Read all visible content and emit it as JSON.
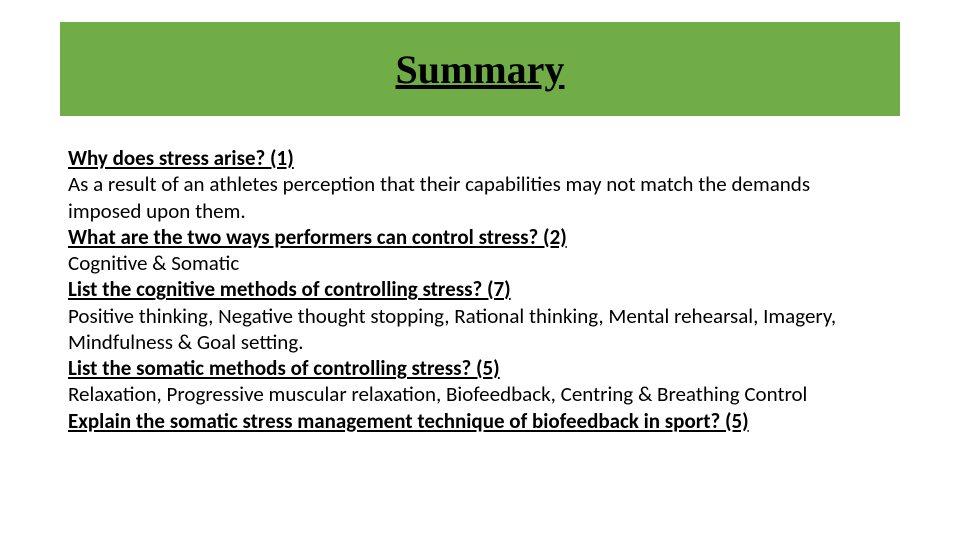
{
  "title": {
    "text": "Summary",
    "fontsize": 40,
    "color": "#000000",
    "bar_bg": "#70ad47"
  },
  "content": {
    "fontsize": 21,
    "line_height": 1.25,
    "color": "#000000",
    "q1": "Why does stress arise? (1)",
    "a1a": "As a result of an athletes perception that their capabilities may not match the demands",
    "a1b": "imposed upon them.",
    "q2": "What are the two ways performers can control stress? (2)",
    "a2": "Cognitive & Somatic",
    "q3": "List the cognitive methods of controlling stress? (7)",
    "a3a": "Positive thinking, Negative thought stopping, Rational thinking, Mental rehearsal, Imagery,",
    "a3b": "Mindfulness & Goal setting.",
    "q4": "List the somatic methods of controlling stress? (5)",
    "a4": "Relaxation, Progressive muscular relaxation, Biofeedback, Centring & Breathing Control",
    "q5": "Explain the somatic stress management technique of biofeedback in sport? (5)"
  },
  "layout": {
    "slide_width": 960,
    "slide_height": 540,
    "background": "#ffffff"
  }
}
